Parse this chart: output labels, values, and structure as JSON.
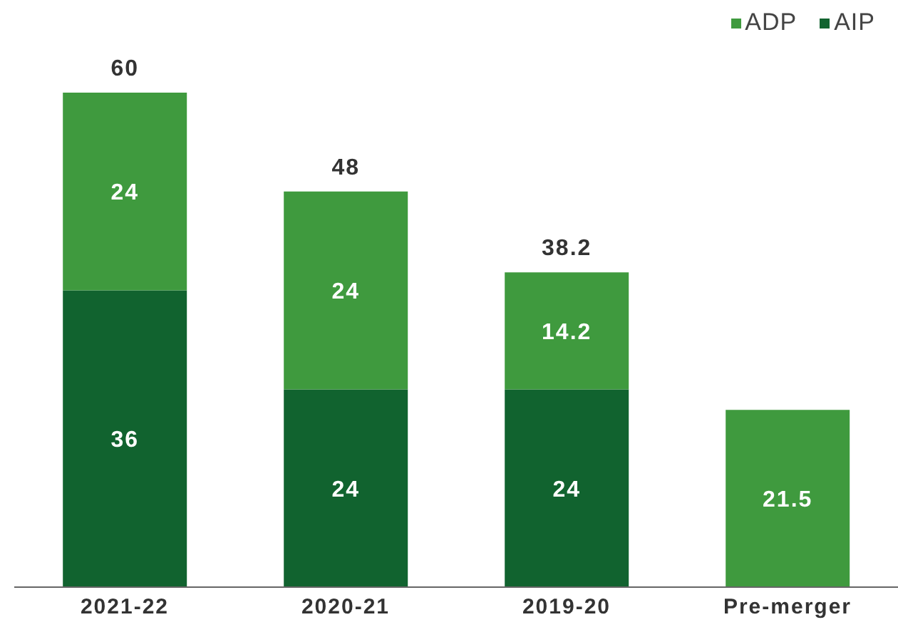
{
  "chart_data": {
    "type": "bar",
    "stacked": true,
    "categories": [
      "2021-22",
      "2020-21",
      "2019-20",
      "Pre-merger"
    ],
    "series": [
      {
        "name": "AIP",
        "color": "#11632f",
        "values": [
          36,
          24,
          24,
          null
        ]
      },
      {
        "name": "ADP",
        "color": "#3f9a3e",
        "values": [
          24,
          24,
          14.2,
          21.5
        ]
      }
    ],
    "data_labels": true,
    "totals": [
      "60",
      "48",
      "38.2",
      null
    ],
    "legend": "top right",
    "tick_labels": "x"
  }
}
